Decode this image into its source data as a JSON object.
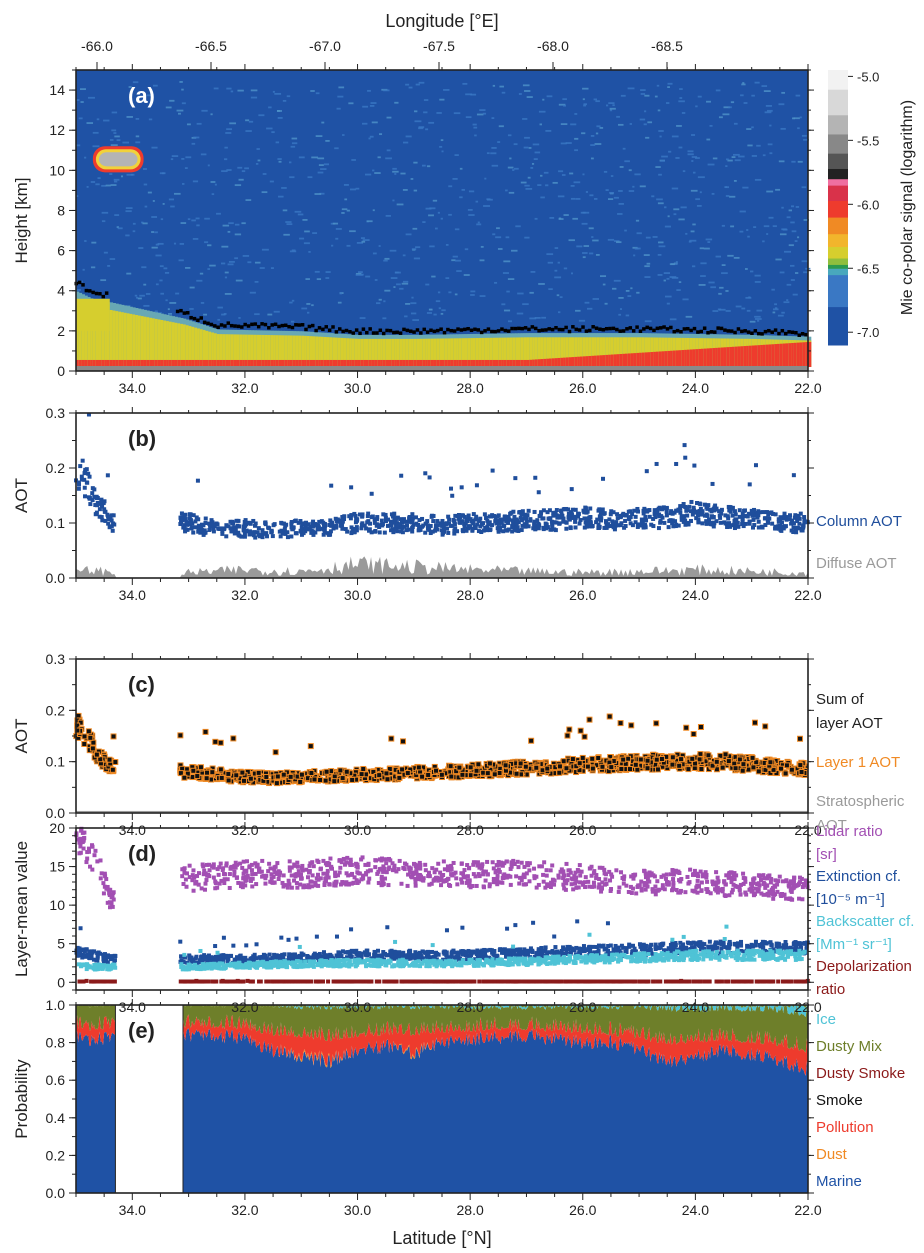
{
  "figure": {
    "top_axis_title": "Longitude [°E]",
    "top_ticks": [
      "-66.0",
      "-66.5",
      "-67.0",
      "-67.5",
      "-68.0",
      "-68.5"
    ],
    "bottom_axis_title": "Latitude [°N]",
    "lat_ticks": [
      "34.0",
      "32.0",
      "30.0",
      "28.0",
      "26.0",
      "24.0",
      "22.0"
    ]
  },
  "chart_data": [
    {
      "id": "a",
      "type": "heatmap",
      "panel_label": "(a)",
      "ylabel": "Height [km]",
      "yticks": [
        "0",
        "2",
        "4",
        "6",
        "8",
        "10",
        "12",
        "14"
      ],
      "xlim": [
        35.0,
        22.0
      ],
      "ylim": [
        0,
        15
      ],
      "colorbar_label": "Mie co-polar signal (logarithm)",
      "colorbar_ticks": [
        "-5.0",
        "-5.5",
        "-6.0",
        "-6.5",
        "-7.0"
      ],
      "colorbar_range": [
        -7.1,
        -4.95
      ],
      "colors": {
        "background": "#1f52a5",
        "mid": "#d6ce2e",
        "high": "#ee3b2d",
        "cloud": "#b4b4b4",
        "top_line": "#000000"
      },
      "features": [
        {
          "name": "cirrus cloud",
          "lat": [
            33.8,
            34.7
          ],
          "height_km": [
            9.9,
            11.2
          ]
        },
        {
          "name": "aerosol layer",
          "lat": [
            22.0,
            35.0
          ],
          "height_km": [
            0.2,
            2.0
          ]
        },
        {
          "name": "elevated layer",
          "lat": [
            34.4,
            35.0
          ],
          "height_km": [
            2.0,
            4.5
          ]
        }
      ],
      "layer_top_km": [
        [
          35.0,
          4.4
        ],
        [
          34.6,
          3.8
        ],
        [
          34.4,
          3.8
        ],
        [
          33.1,
          2.9
        ],
        [
          32.5,
          2.3
        ],
        [
          31.0,
          2.2
        ],
        [
          30.0,
          2.0
        ],
        [
          29.0,
          2.0
        ],
        [
          27.0,
          2.1
        ],
        [
          25.0,
          2.1
        ],
        [
          23.0,
          2.0
        ],
        [
          22.0,
          1.9
        ]
      ]
    },
    {
      "id": "b",
      "type": "scatter",
      "panel_label": "(b)",
      "ylabel": "AOT",
      "yticks": [
        "0.0",
        "0.1",
        "0.2",
        "0.3"
      ],
      "xlim": [
        35.0,
        22.0
      ],
      "ylim": [
        0,
        0.3
      ],
      "series": [
        {
          "name": "Column AOT",
          "color": "#1f4e9c",
          "kind": "points",
          "x": [
            35.0,
            34.9,
            34.8,
            34.7,
            34.6,
            34.5,
            34.4,
            33.0,
            32.5,
            32.0,
            31.5,
            31.0,
            30.5,
            30.0,
            29.5,
            29.0,
            28.5,
            28.0,
            27.5,
            27.0,
            26.5,
            26.0,
            25.5,
            25.0,
            24.5,
            24.0,
            23.5,
            23.0,
            22.5,
            22.0
          ],
          "y": [
            0.18,
            0.19,
            0.17,
            0.14,
            0.13,
            0.12,
            0.1,
            0.1,
            0.09,
            0.09,
            0.085,
            0.09,
            0.095,
            0.1,
            0.1,
            0.1,
            0.095,
            0.1,
            0.1,
            0.105,
            0.105,
            0.11,
            0.105,
            0.11,
            0.11,
            0.12,
            0.11,
            0.11,
            0.1,
            0.1
          ]
        },
        {
          "name": "Diffuse AOT",
          "color": "#9a9a9a",
          "kind": "area",
          "x": [
            35.0,
            34.7,
            34.5,
            34.4,
            33.0,
            32.0,
            31.0,
            30.0,
            29.0,
            28.0,
            27.0,
            26.0,
            25.0,
            24.0,
            23.0,
            22.0
          ],
          "y": [
            0.01,
            0.015,
            0.012,
            0.01,
            0.01,
            0.015,
            0.012,
            0.025,
            0.02,
            0.015,
            0.012,
            0.01,
            0.012,
            0.015,
            0.012,
            0.01
          ]
        }
      ]
    },
    {
      "id": "c",
      "type": "scatter",
      "panel_label": "(c)",
      "ylabel": "AOT",
      "yticks": [
        "0.0",
        "0.1",
        "0.2",
        "0.3"
      ],
      "xlim": [
        35.0,
        22.0
      ],
      "ylim": [
        0,
        0.3
      ],
      "series": [
        {
          "name": "Sum of layer AOT",
          "color": "#111111",
          "kind": "points",
          "x": [
            35.0,
            34.9,
            34.8,
            34.7,
            34.6,
            34.5,
            34.4,
            33.0,
            32.5,
            32.0,
            31.5,
            31.0,
            30.5,
            30.0,
            29.5,
            29.0,
            28.5,
            28.0,
            27.5,
            27.0,
            26.5,
            26.0,
            25.5,
            25.0,
            24.5,
            24.0,
            23.5,
            23.0,
            22.5,
            22.0
          ],
          "y": [
            0.17,
            0.16,
            0.15,
            0.13,
            0.11,
            0.1,
            0.09,
            0.08,
            0.075,
            0.07,
            0.068,
            0.07,
            0.072,
            0.075,
            0.075,
            0.078,
            0.08,
            0.082,
            0.085,
            0.088,
            0.09,
            0.095,
            0.095,
            0.098,
            0.1,
            0.1,
            0.1,
            0.095,
            0.09,
            0.085
          ]
        },
        {
          "name": "Layer 1 AOT",
          "color": "#f08a24",
          "kind": "points"
        },
        {
          "name": "Stratospheric AOT",
          "color": "#9a9a9a",
          "kind": "area",
          "x": [
            35.0,
            22.0
          ],
          "y": [
            0.003,
            0.003
          ]
        }
      ]
    },
    {
      "id": "d",
      "type": "scatter",
      "panel_label": "(d)",
      "ylabel": "Layer-mean value",
      "yticks": [
        "0",
        "5",
        "10",
        "15",
        "20"
      ],
      "xlim": [
        35.0,
        22.0
      ],
      "ylim": [
        -1,
        20
      ],
      "series": [
        {
          "name": "Lidar ratio [sr]",
          "color": "#a24fb3",
          "x": [
            35.0,
            34.8,
            34.6,
            34.4,
            33.0,
            32.0,
            31.0,
            30.0,
            29.0,
            28.0,
            27.0,
            26.0,
            25.0,
            24.0,
            23.0,
            22.0
          ],
          "y": [
            19,
            17,
            15,
            11,
            13.5,
            14,
            14,
            14.5,
            14,
            14,
            14,
            13.5,
            13,
            13,
            12.5,
            12
          ]
        },
        {
          "name": "Extinction cf. [10⁻⁵ m⁻¹]",
          "color": "#1f4e9c",
          "x": [
            35.0,
            34.4,
            33.0,
            32.0,
            31.0,
            30.0,
            29.0,
            28.0,
            27.0,
            26.0,
            25.0,
            24.0,
            23.0,
            22.0
          ],
          "y": [
            4,
            3,
            3,
            3,
            3.2,
            3.5,
            3.5,
            3.5,
            3.8,
            4,
            4.2,
            4.5,
            4.5,
            4.5
          ]
        },
        {
          "name": "Backscatter cf. [Mm⁻¹ sr⁻¹]",
          "color": "#4fc3d6",
          "x": [
            35.0,
            34.4,
            33.0,
            32.0,
            31.0,
            30.0,
            29.0,
            28.0,
            27.0,
            26.0,
            25.0,
            24.0,
            23.0,
            22.0
          ],
          "y": [
            2,
            2,
            2,
            2.2,
            2.4,
            2.5,
            2.5,
            2.5,
            2.7,
            3,
            3.2,
            3.5,
            3.5,
            3.5
          ]
        },
        {
          "name": "Depolarization ratio",
          "color": "#8b1a1a",
          "x": [
            35.0,
            34.4,
            33.0,
            22.0
          ],
          "y": [
            0.1,
            0.1,
            0.1,
            0.1
          ]
        }
      ]
    },
    {
      "id": "e",
      "type": "area",
      "panel_label": "(e)",
      "ylabel": "Probability",
      "yticks": [
        "0.0",
        "0.2",
        "0.4",
        "0.6",
        "0.8",
        "1.0"
      ],
      "xlim": [
        35.0,
        22.0
      ],
      "ylim": [
        0,
        1
      ],
      "gap": [
        34.3,
        33.1
      ],
      "x": [
        35.0,
        34.4,
        33.1,
        32.5,
        32.0,
        31.5,
        31.0,
        30.5,
        30.0,
        29.5,
        29.0,
        28.5,
        28.0,
        27.5,
        27.0,
        26.5,
        26.0,
        25.5,
        25.0,
        24.5,
        24.0,
        23.5,
        23.0,
        22.5,
        22.0
      ],
      "series": [
        {
          "name": "Marine",
          "color": "#1f52a5",
          "values": [
            0.82,
            0.82,
            0.84,
            0.84,
            0.82,
            0.76,
            0.73,
            0.7,
            0.76,
            0.78,
            0.74,
            0.8,
            0.82,
            0.83,
            0.84,
            0.82,
            0.8,
            0.8,
            0.76,
            0.7,
            0.72,
            0.76,
            0.74,
            0.7,
            0.66
          ]
        },
        {
          "name": "Dust",
          "color": "#f08a24",
          "values": [
            0.0,
            0.0,
            0.0,
            0.0,
            0.0,
            0.0,
            0.01,
            0.01,
            0.0,
            0.0,
            0.01,
            0.0,
            0.0,
            0.0,
            0.0,
            0.0,
            0.0,
            0.0,
            0.0,
            0.0,
            0.0,
            0.0,
            0.0,
            0.0,
            0.0
          ]
        },
        {
          "name": "Pollution",
          "color": "#ee3b2d",
          "values": [
            0.06,
            0.06,
            0.05,
            0.05,
            0.06,
            0.09,
            0.1,
            0.11,
            0.08,
            0.07,
            0.1,
            0.06,
            0.05,
            0.05,
            0.04,
            0.05,
            0.06,
            0.05,
            0.07,
            0.1,
            0.09,
            0.06,
            0.07,
            0.09,
            0.1
          ]
        },
        {
          "name": "Smoke",
          "color": "#000000",
          "values": [
            0.0,
            0.0,
            0.0,
            0.0,
            0.0,
            0.0,
            0.0,
            0.0,
            0.0,
            0.0,
            0.0,
            0.0,
            0.0,
            0.0,
            0.0,
            0.0,
            0.0,
            0.0,
            0.0,
            0.0,
            0.0,
            0.0,
            0.0,
            0.0,
            0.0
          ]
        },
        {
          "name": "Dusty Smoke",
          "color": "#8b1a1a",
          "values": [
            0.0,
            0.0,
            0.0,
            0.0,
            0.0,
            0.0,
            0.0,
            0.0,
            0.0,
            0.0,
            0.0,
            0.0,
            0.0,
            0.0,
            0.0,
            0.0,
            0.0,
            0.0,
            0.0,
            0.0,
            0.0,
            0.0,
            0.0,
            0.0,
            0.0
          ]
        },
        {
          "name": "Dusty Mix",
          "color": "#6e7f2a",
          "values": [
            0.12,
            0.12,
            0.11,
            0.11,
            0.12,
            0.15,
            0.15,
            0.17,
            0.15,
            0.14,
            0.14,
            0.13,
            0.12,
            0.11,
            0.11,
            0.12,
            0.13,
            0.14,
            0.16,
            0.18,
            0.16,
            0.16,
            0.17,
            0.18,
            0.19
          ]
        },
        {
          "name": "Ice",
          "color": "#4fc3d6",
          "values": [
            0.0,
            0.0,
            0.0,
            0.0,
            0.0,
            0.0,
            0.01,
            0.01,
            0.01,
            0.01,
            0.01,
            0.01,
            0.01,
            0.01,
            0.01,
            0.01,
            0.01,
            0.01,
            0.01,
            0.02,
            0.03,
            0.02,
            0.02,
            0.03,
            0.05
          ]
        }
      ]
    }
  ]
}
